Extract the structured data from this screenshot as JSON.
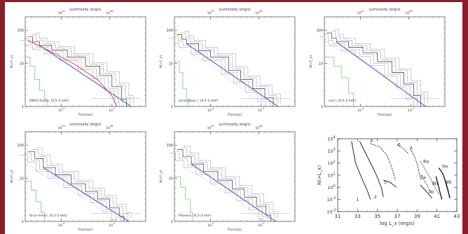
{
  "chart_data": [
    {
      "type": "line",
      "title_top": "Luminosity (erg/s)",
      "xlabel": "Flux(cps)",
      "ylabel": "N(>F_x)",
      "log_x": true,
      "log_y": true,
      "top_ticks": [
        "10^34",
        "10^36"
      ],
      "bottom_ticks": [
        "10^-4",
        "10^-2"
      ],
      "left_ticks": [
        "100",
        "10",
        "1"
      ],
      "annotation": "DBSS–Draco, (0.5–2 keV)"
    },
    {
      "type": "line",
      "title_top": "Luminosity (erg/s)",
      "xlabel": "Flux(cps)",
      "ylabel": "N(>F_x)",
      "log_x": true,
      "log_y": true,
      "top_ticks": [
        "10^34",
        "10^36"
      ],
      "bottom_ticks": [
        "10^-4",
        "10^-2"
      ],
      "left_ticks": [
        "100",
        "10",
        "1"
      ],
      "annotation": "Ursa–Major I, (0.5–2 keV)"
    },
    {
      "type": "line",
      "title_top": "Luminosity (erg/s)",
      "xlabel": "Flux(cps)",
      "ylabel": "N(>F_x)",
      "log_x": true,
      "log_y": true,
      "top_ticks": [
        "10^34",
        "10^36"
      ],
      "bottom_ticks": [
        "10^-4",
        "10^-2"
      ],
      "left_ticks": [
        "100",
        "10",
        "1"
      ],
      "annotation": "Leo I, (0.5–2 keV)"
    },
    {
      "type": "line",
      "title_top": "Luminosity (erg/s)",
      "xlabel": "Flux(cps)",
      "ylabel": "N(>F_x)",
      "log_x": true,
      "log_y": true,
      "top_ticks": [
        "10^34",
        "10^36"
      ],
      "bottom_ticks": [
        "10^-4",
        "10^-2"
      ],
      "left_ticks": [
        "100",
        "10",
        "1"
      ],
      "annotation": "Ursa–minor, (0.5–2 keV)"
    },
    {
      "type": "line",
      "title_top": "Luminosity (erg/s)",
      "xlabel": "Flux(cps)",
      "ylabel": "N(>F_x)",
      "log_x": true,
      "log_y": true,
      "top_ticks": [
        "10^34",
        "10^36"
      ],
      "bottom_ticks": [
        "10^-4",
        "10^-2"
      ],
      "left_ticks": [
        "100",
        "10",
        "1"
      ],
      "annotation": "Phoenix, (0.5–2 keV)"
    },
    {
      "type": "line",
      "xlabel": "log L_x (erg/s)",
      "ylabel": "N(>L_x)",
      "x_ticks": [
        "31",
        "33",
        "35",
        "37",
        "39",
        "41",
        "43"
      ],
      "y_ticks": [
        "10^4",
        "10^3",
        "10^2",
        "10^1",
        "10^0",
        "10^-1",
        "10^-2"
      ],
      "xlim": [
        31,
        43
      ],
      "ylim_exp": [
        -2,
        4
      ],
      "series": [
        {
          "name": "1",
          "points": [
            [
              32.4,
              3.8
            ],
            [
              32.8,
              2.0
            ],
            [
              33.4,
              0.8
            ],
            [
              34.0,
              -0.3
            ],
            [
              34.3,
              -1.0
            ]
          ]
        },
        {
          "name": "2",
          "points": [
            [
              33.2,
              3.8
            ],
            [
              34.0,
              2.5
            ],
            [
              34.8,
              1.2
            ],
            [
              35.4,
              0.0
            ],
            [
              35.6,
              -0.8
            ]
          ]
        },
        {
          "name": "4",
          "points": [
            [
              34.3,
              3.6
            ],
            [
              35.3,
              3.3
            ],
            [
              36.0,
              2.6
            ],
            [
              36.5,
              1.5
            ],
            [
              36.8,
              0.6
            ]
          ]
        },
        {
          "name": "5",
          "points": [
            [
              35.6,
              0.6
            ],
            [
              36.3,
              0.4
            ],
            [
              36.9,
              0.0
            ]
          ]
        },
        {
          "name": "6",
          "points": [
            [
              37.0,
              3.5
            ],
            [
              37.6,
              3.2
            ],
            [
              38.1,
              2.8
            ]
          ]
        },
        {
          "name": "3",
          "points": [
            [
              38.3,
              3.2
            ],
            [
              38.7,
              2.6
            ],
            [
              39.0,
              2.0
            ],
            [
              39.2,
              1.2
            ],
            [
              39.4,
              0.6
            ]
          ]
        },
        {
          "name": "8a",
          "points": [
            [
              39.3,
              2.2
            ],
            [
              39.8,
              1.5
            ],
            [
              40.3,
              0.8
            ],
            [
              40.8,
              0.0
            ],
            [
              41.2,
              -0.6
            ]
          ]
        },
        {
          "name": "7a",
          "points": [
            [
              39.4,
              1.0
            ],
            [
              40.0,
              0.2
            ],
            [
              40.4,
              -0.5
            ]
          ]
        },
        {
          "name": "7b",
          "points": [
            [
              39.3,
              0.2
            ],
            [
              39.9,
              -0.3
            ],
            [
              40.5,
              -0.9
            ]
          ]
        },
        {
          "name": "8b",
          "points": [
            [
              40.9,
              0.9
            ],
            [
              41.1,
              0.3
            ],
            [
              41.3,
              -0.4
            ],
            [
              41.5,
              -1.0
            ]
          ]
        },
        {
          "name": "9a",
          "points": [
            [
              41.2,
              1.6
            ],
            [
              41.6,
              1.1
            ],
            [
              41.9,
              0.4
            ],
            [
              42.1,
              -0.2
            ],
            [
              42.3,
              -0.9
            ]
          ]
        },
        {
          "name": "9b",
          "points": [
            [
              41.8,
              0.6
            ],
            [
              42.0,
              0.0
            ],
            [
              42.3,
              -0.8
            ]
          ]
        }
      ],
      "labels": [
        {
          "text": "1",
          "x": 33.0,
          "y": -1.1
        },
        {
          "text": "2",
          "x": 34.8,
          "y": -0.9
        },
        {
          "text": "4",
          "x": 34.4,
          "y": 3.7
        },
        {
          "text": "5",
          "x": 35.8,
          "y": 0.3
        },
        {
          "text": "6",
          "x": 37.2,
          "y": 3.4
        },
        {
          "text": "3",
          "x": 38.4,
          "y": 3.1
        },
        {
          "text": "8a",
          "x": 39.9,
          "y": 2.0
        },
        {
          "text": "7a",
          "x": 39.6,
          "y": 0.7
        },
        {
          "text": "7b",
          "x": 40.4,
          "y": -0.5
        },
        {
          "text": "8b",
          "x": 40.8,
          "y": 0.2
        },
        {
          "text": "9a",
          "x": 41.8,
          "y": 1.6
        },
        {
          "text": "9b",
          "x": 42.2,
          "y": 0.3
        }
      ]
    }
  ]
}
